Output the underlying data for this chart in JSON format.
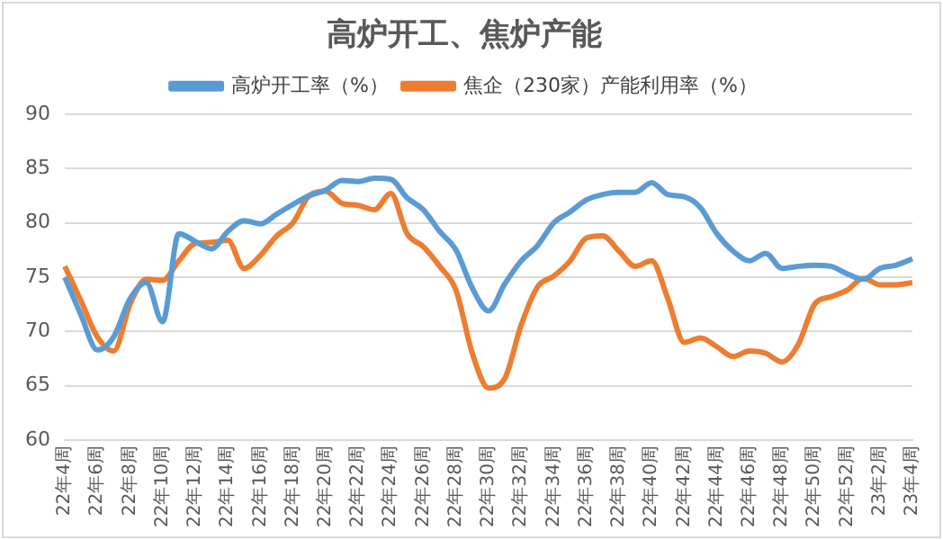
{
  "chart_data": {
    "type": "line",
    "title": "高炉开工、焦炉产能",
    "categories": [
      "22年4周",
      null,
      "22年6周",
      null,
      "22年8周",
      null,
      "22年10周",
      null,
      "22年12周",
      null,
      "22年14周",
      null,
      "22年16周",
      null,
      "22年18周",
      null,
      "22年20周",
      null,
      "22年22周",
      null,
      "22年24周",
      null,
      "22年26周",
      null,
      "22年28周",
      null,
      "22年30周",
      null,
      "22年32周",
      null,
      "22年34周",
      null,
      "22年36周",
      null,
      "22年38周",
      null,
      "22年40周",
      null,
      "22年42周",
      null,
      "22年44周",
      null,
      "22年46周",
      null,
      "22年48周",
      null,
      "22年50周",
      null,
      "22年52周",
      null,
      "23年2周",
      null,
      "23年4周"
    ],
    "series": [
      {
        "name": "高炉开工率（%）",
        "color": "#5b9bd5",
        "values": [
          75,
          71.5,
          68.3,
          69.5,
          73,
          74.5,
          70.9,
          79,
          78.3,
          77.6,
          79.2,
          80.2,
          79.9,
          80.8,
          81.7,
          82.5,
          83,
          83.9,
          83.8,
          84.1,
          84,
          82.3,
          81.2,
          79.2,
          77.5,
          74,
          71.9,
          74.4,
          76.5,
          77.9,
          80,
          81,
          82.1,
          82.6,
          82.8,
          82.8,
          83.7,
          82.6,
          82.4,
          81.4,
          79,
          77.4,
          76.5,
          77.2,
          75.8,
          76,
          76.1,
          76,
          75.3,
          74.8,
          75.8,
          76.1,
          76.7
        ]
      },
      {
        "name": "焦企（230家）产能利用率（%）",
        "color": "#ed7d31",
        "values": [
          76,
          72.8,
          69.5,
          68.2,
          72.5,
          74.8,
          74.7,
          76.5,
          78.1,
          78.2,
          78.4,
          75.8,
          77,
          78.8,
          80,
          82.5,
          82.9,
          81.8,
          81.6,
          81.2,
          82.7,
          79,
          77.8,
          76,
          73.8,
          68,
          64.8,
          65.7,
          70.6,
          74.1,
          75.1,
          76.5,
          78.6,
          78.8,
          77.4,
          76,
          76.5,
          73,
          69,
          69.4,
          68.6,
          67.7,
          68.2,
          68,
          67.2,
          68.8,
          72.5,
          73.2,
          73.8,
          74.9,
          74.3,
          74.3,
          74.5
        ]
      }
    ],
    "ylim": [
      60,
      90
    ],
    "yticks": [
      60,
      65,
      70,
      75,
      80,
      85,
      90
    ],
    "grid": "y",
    "legend": "top",
    "marker": "none",
    "line_style": "solid"
  }
}
